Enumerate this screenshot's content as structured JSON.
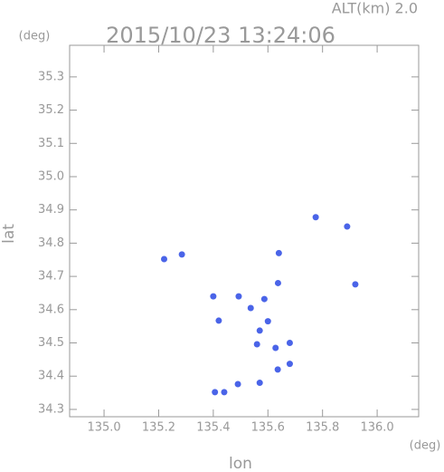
{
  "chart_data": {
    "type": "scatter",
    "title": "2015/10/23 13:24:06",
    "subtitle": "ALT(km) 2.0",
    "y_unit": "(deg)",
    "x_unit": "(deg)",
    "x_label": "lon",
    "y_label": "lat",
    "xlim": [
      134.874,
      136.152
    ],
    "ylim": [
      34.278,
      35.395
    ],
    "xticks": [
      {
        "value": 135,
        "label": "135.0"
      },
      135.2,
      135.4,
      135.6,
      135.8,
      {
        "value": 136,
        "label": "136.0"
      }
    ],
    "yticks": [
      34.3,
      34.4,
      34.5,
      34.6,
      34.7,
      34.8,
      34.9,
      {
        "value": 35,
        "label": "35.0"
      },
      35.1,
      35.2,
      35.3
    ],
    "color": "#4a64e8",
    "x": [
      135.775,
      135.89,
      135.92,
      135.285,
      135.22,
      135.64,
      135.537,
      135.493,
      135.587,
      135.637,
      135.57,
      135.56,
      135.6,
      135.628,
      135.68,
      135.636,
      135.68,
      135.57,
      135.49,
      135.44,
      135.406,
      135.42,
      135.4
    ],
    "values": [
      34.878,
      34.85,
      34.676,
      34.766,
      34.752,
      34.77,
      34.605,
      34.64,
      34.632,
      34.68,
      34.537,
      34.496,
      34.565,
      34.485,
      34.5,
      34.42,
      34.437,
      34.38,
      34.376,
      34.352,
      34.352,
      34.567,
      34.64
    ]
  }
}
